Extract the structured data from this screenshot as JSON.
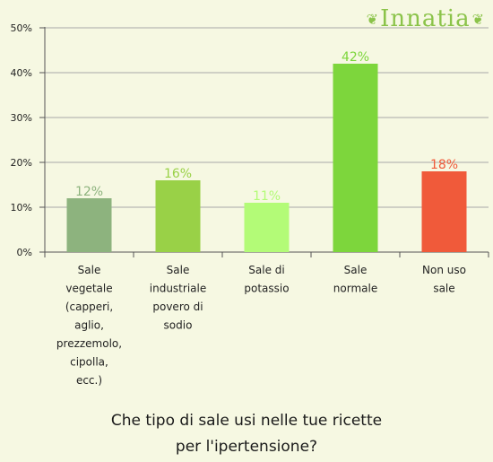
{
  "logo": {
    "text": "Innatia"
  },
  "chart_data": {
    "type": "bar",
    "categories": [
      [
        "Sale",
        "vegetale",
        "(capperi,",
        "aglio,",
        "prezzemolo,",
        "cipolla,",
        "ecc.)"
      ],
      [
        "Sale",
        "industriale",
        "povero di",
        "sodio"
      ],
      [
        "Sale di",
        "potassio"
      ],
      [
        "Sale",
        "normale"
      ],
      [
        "Non uso",
        "sale"
      ]
    ],
    "values": [
      12,
      16,
      11,
      42,
      18
    ],
    "value_labels": [
      "12%",
      "16%",
      "11%",
      "42%",
      "18%"
    ],
    "colors": [
      "#8db37e",
      "#99d147",
      "#b3fb77",
      "#7dd63c",
      "#f05a3a"
    ],
    "yticks": [
      "0%",
      "10%",
      "20%",
      "30%",
      "40%",
      "50%"
    ],
    "ylim": [
      0,
      50
    ],
    "grid": true,
    "title": [
      "Che tipo di sale usi nelle tue ricette",
      "per l'ipertensione?"
    ]
  }
}
